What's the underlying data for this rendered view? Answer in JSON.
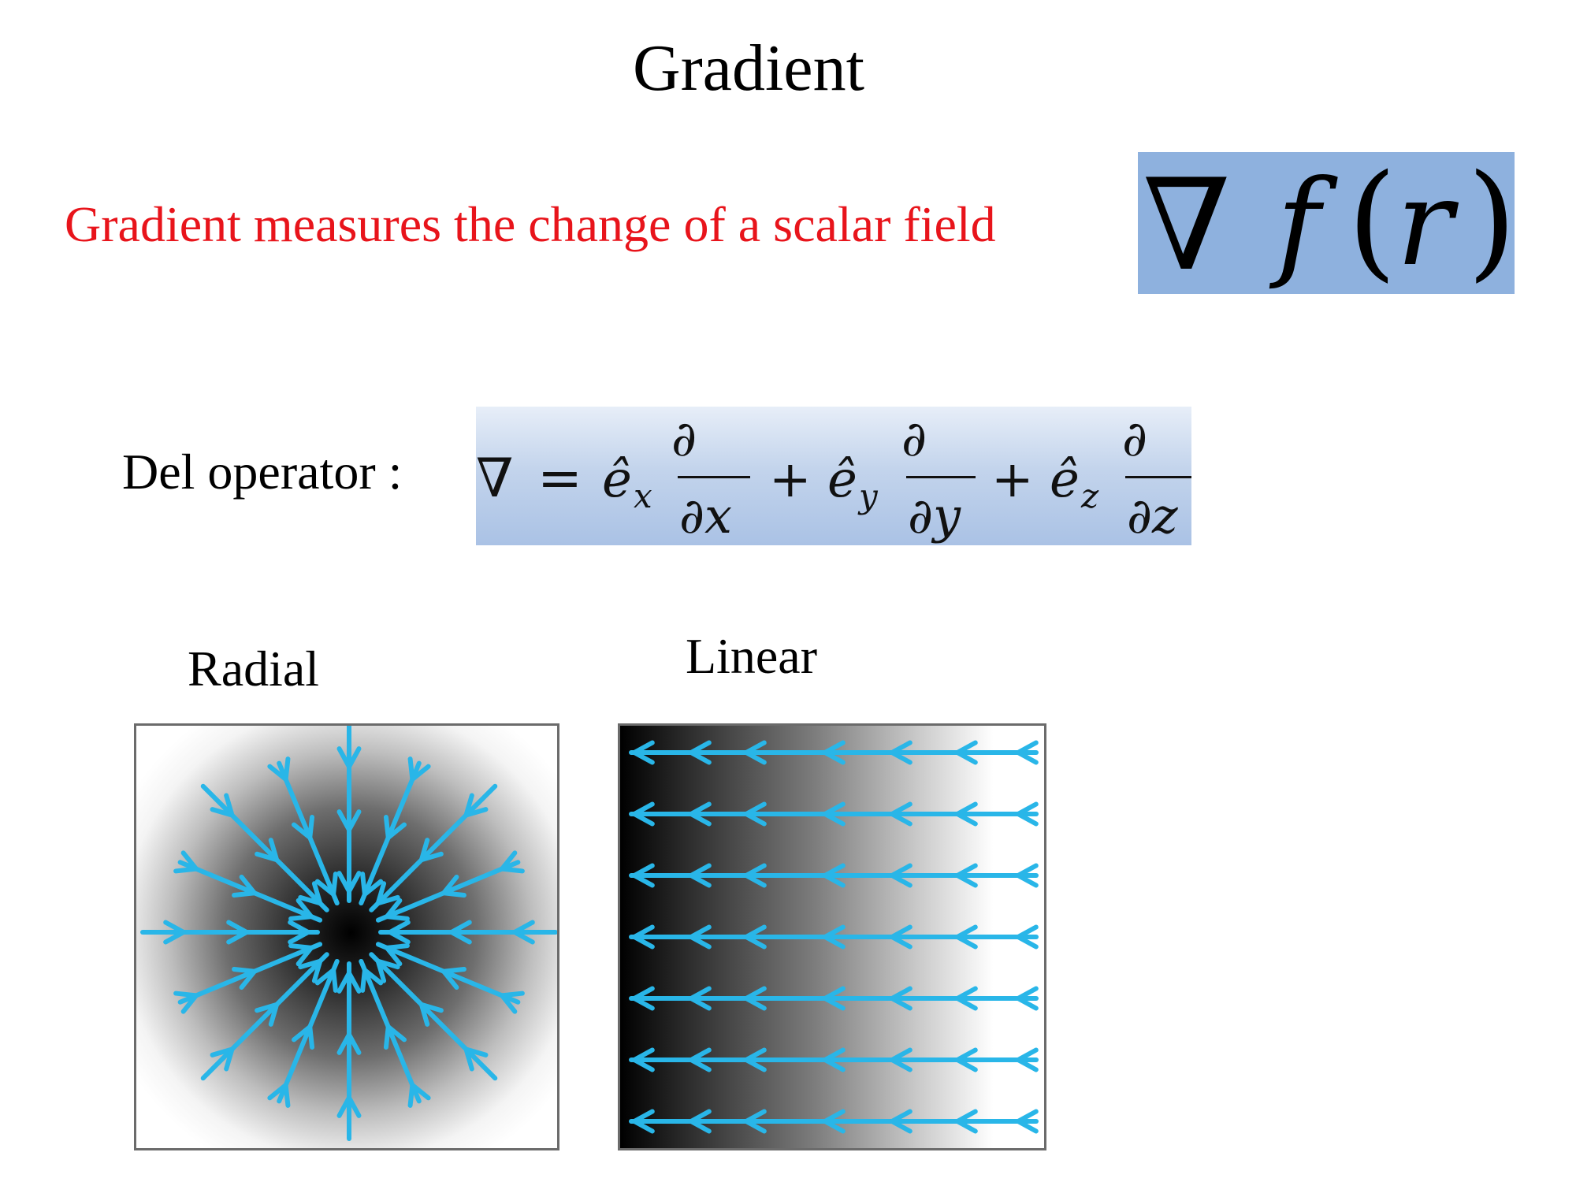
{
  "title": "Gradient",
  "statement": "Gradient measures the change of a scalar field",
  "gradient_symbol": {
    "nabla": "∇",
    "function": "f",
    "open_paren": "(",
    "variable": "r",
    "close_paren": ")"
  },
  "del_operator": {
    "label": "Del operator :",
    "nabla": "∇",
    "equals": "=",
    "plus": "+",
    "partial": "∂",
    "unit_vector": "ê",
    "terms": [
      {
        "subscript": "x",
        "denominator": "∂x"
      },
      {
        "subscript": "y",
        "denominator": "∂y"
      },
      {
        "subscript": "z",
        "denominator": "∂z"
      }
    ]
  },
  "diagrams": {
    "radial_label": "Radial",
    "linear_label": "Linear"
  },
  "colors": {
    "statement": "#e8141b",
    "formula_background": "#8eb1de",
    "arrow": "#29b6e8"
  }
}
